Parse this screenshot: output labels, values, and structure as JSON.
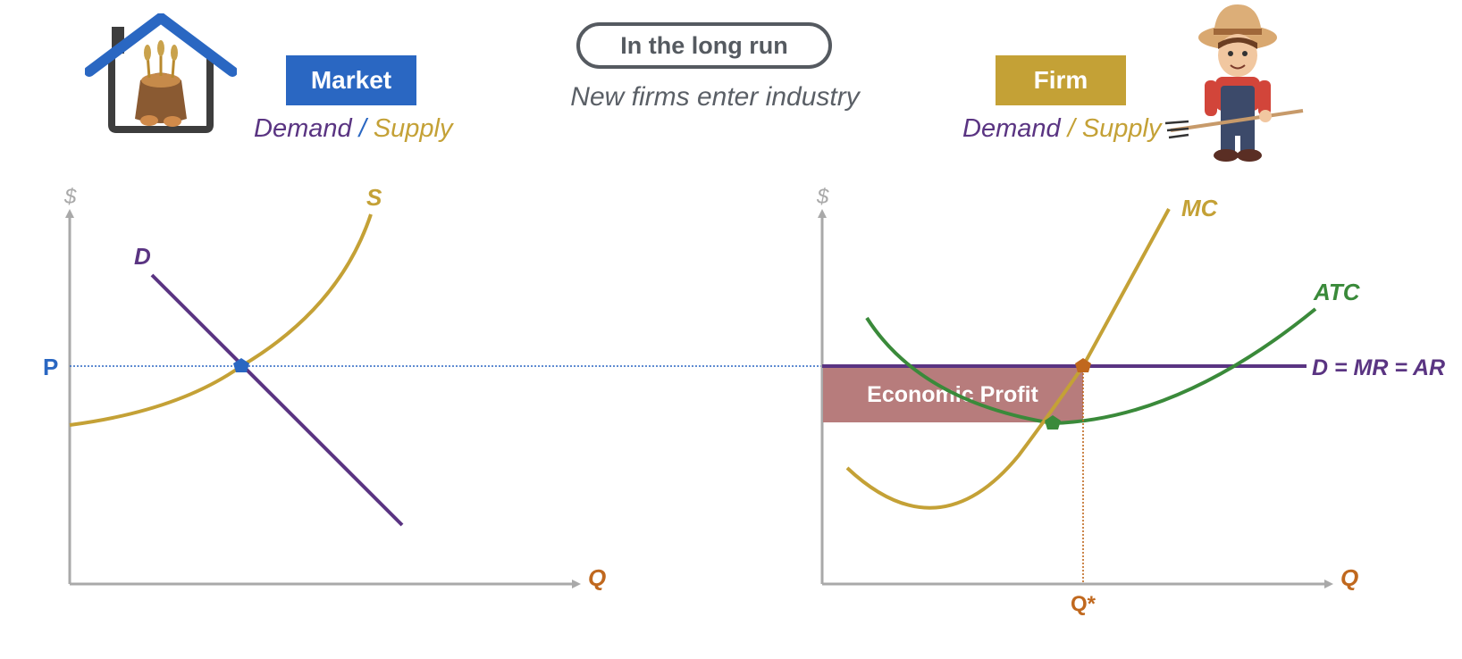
{
  "header": {
    "pill_label": "In the long run",
    "subtitle": "New firms enter industry"
  },
  "market": {
    "badge": "Market",
    "legend_demand": "Demand",
    "legend_slash": "/",
    "legend_supply": "Supply",
    "y_axis_label": "$",
    "x_axis_label": "Q",
    "supply_label": "S",
    "demand_label": "D",
    "price_label": "P"
  },
  "firm": {
    "badge": "Firm",
    "legend_demand": "Demand",
    "legend_slash": "/",
    "legend_supply": "Supply",
    "y_axis_label": "$",
    "x_axis_label": "Q",
    "mc_label": "MC",
    "atc_label": "ATC",
    "demand_line_label": "D = MR = AR",
    "profit_label": "Economic Profit",
    "q_star_label": "Q*"
  },
  "colors": {
    "demand": "#5a3482",
    "supply": "#c4a136",
    "atc": "#3a8a3a",
    "price_blue": "#2a67c2",
    "profit_fill": "#b77c7c",
    "q_orange": "#c0681e",
    "axis": "#a9a9a9"
  },
  "icons": {
    "market_icon": "house-with-grain-sack-icon",
    "firm_icon": "farmer-with-pitchfork-icon"
  }
}
